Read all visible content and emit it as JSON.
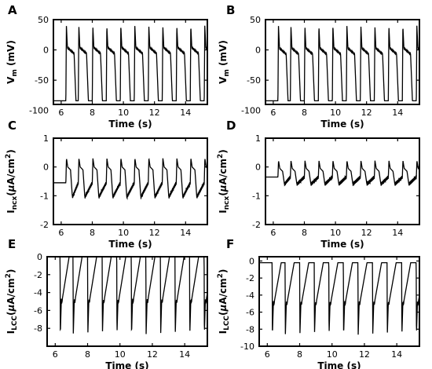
{
  "chart_data": [
    {
      "panel": "A",
      "type": "line",
      "xlabel": "Time (s)",
      "ylabel": {
        "main": "V",
        "sub": "m",
        "unit": " (mV)"
      },
      "xlim": [
        5.5,
        15.4
      ],
      "ylim": [
        -90,
        50
      ],
      "xticks": [
        6,
        8,
        10,
        12,
        14
      ],
      "yticks": [
        -100,
        -50,
        0,
        50
      ],
      "series": [
        {
          "model": "ap",
          "beats": [
            6.3,
            7.1,
            8.0,
            8.9,
            9.8,
            10.7,
            11.6,
            12.5,
            13.4,
            14.3,
            15.2
          ],
          "rest": -84,
          "peak": 40,
          "plateau": -4,
          "duration": 0.65
        }
      ]
    },
    {
      "panel": "B",
      "type": "line",
      "xlabel": "Time (s)",
      "ylabel": {
        "main": "V",
        "sub": "m",
        "unit": " (mV)"
      },
      "xlim": [
        5.5,
        15.4
      ],
      "ylim": [
        -90,
        50
      ],
      "xticks": [
        6,
        8,
        10,
        12,
        14
      ],
      "yticks": [
        -100,
        -50,
        0,
        50
      ],
      "series": [
        {
          "model": "ap",
          "beats": [
            6.3,
            7.1,
            8.0,
            8.9,
            9.8,
            10.7,
            11.6,
            12.5,
            13.4,
            14.3,
            15.2
          ],
          "rest": -84,
          "peak": 40,
          "plateau": -5,
          "duration": 0.65
        }
      ]
    },
    {
      "panel": "C",
      "type": "line",
      "xlabel": "Time (s)",
      "ylabel": {
        "main": "I",
        "sub": "ncx",
        "unit_pre": "(",
        "unit_mu": "μ",
        "unit_mid": "A/cm",
        "unit_sup": "2",
        "unit_post": ")"
      },
      "xlim": [
        5.5,
        15.4
      ],
      "ylim": [
        -2,
        1
      ],
      "xticks": [
        6,
        8,
        10,
        12,
        14
      ],
      "yticks": [
        -2,
        -1,
        0,
        1
      ],
      "series": [
        {
          "model": "ncx",
          "beats": [
            6.3,
            7.1,
            8.0,
            8.9,
            9.8,
            10.7,
            11.6,
            12.5,
            13.4,
            14.3,
            15.2
          ],
          "trough": -1.05,
          "pre": -0.55,
          "peak": 0.3,
          "shoulder": 0.0,
          "duration": 0.75
        }
      ]
    },
    {
      "panel": "D",
      "type": "line",
      "xlabel": "Time (s)",
      "ylabel": {
        "main": "I",
        "sub": "ncx",
        "unit_pre": "(",
        "unit_mu": "μ",
        "unit_mid": "A/cm",
        "unit_sup": "2",
        "unit_post": ")"
      },
      "xlim": [
        5.5,
        15.4
      ],
      "ylim": [
        -2,
        1
      ],
      "xticks": [
        6,
        8,
        10,
        12,
        14
      ],
      "yticks": [
        -2,
        -1,
        0,
        1
      ],
      "series": [
        {
          "model": "ncx",
          "beats": [
            6.3,
            7.1,
            8.0,
            8.9,
            9.8,
            10.7,
            11.6,
            12.5,
            13.4,
            14.3,
            15.2
          ],
          "trough": -0.6,
          "pre": -0.35,
          "peak": 0.22,
          "shoulder": -0.05,
          "duration": 0.75
        }
      ]
    },
    {
      "panel": "E",
      "type": "line",
      "xlabel": "Time (s)",
      "ylabel": {
        "main": "I",
        "sub": "LCC",
        "unit_pre": "(",
        "unit_mu": "μ",
        "unit_mid": "A/cm",
        "unit_sup": "2",
        "unit_post": ")"
      },
      "xlim": [
        5.5,
        15.4
      ],
      "ylim": [
        -10,
        0
      ],
      "xticks": [
        6,
        8,
        10,
        12,
        14
      ],
      "yticks": [
        -8,
        -6,
        -4,
        -2,
        0
      ],
      "series": [
        {
          "model": "lcc",
          "beats": [
            6.3,
            7.1,
            8.0,
            8.9,
            9.8,
            10.7,
            11.6,
            12.5,
            13.4,
            14.3,
            15.2
          ],
          "base": 0.0,
          "spike": -8.7,
          "plateau": -4.7,
          "duration": 0.62
        }
      ]
    },
    {
      "panel": "F",
      "type": "line",
      "xlabel": "Time (s)",
      "ylabel": {
        "main": "I",
        "sub": "LCC",
        "unit_pre": "(",
        "unit_mu": "μ",
        "unit_mid": "A/cm",
        "unit_sup": "2",
        "unit_post": ")"
      },
      "xlim": [
        5.5,
        15.4
      ],
      "ylim": [
        -10,
        0.5
      ],
      "xticks": [
        6,
        8,
        10,
        12,
        14
      ],
      "yticks": [
        -10,
        -8,
        -6,
        -4,
        -2,
        0
      ],
      "series": [
        {
          "model": "lcc",
          "beats": [
            6.3,
            7.1,
            8.0,
            8.9,
            9.8,
            10.7,
            11.6,
            12.5,
            13.4,
            14.3,
            15.2
          ],
          "base": -0.2,
          "spike": -8.7,
          "plateau": -4.7,
          "duration": 0.62
        }
      ]
    }
  ]
}
